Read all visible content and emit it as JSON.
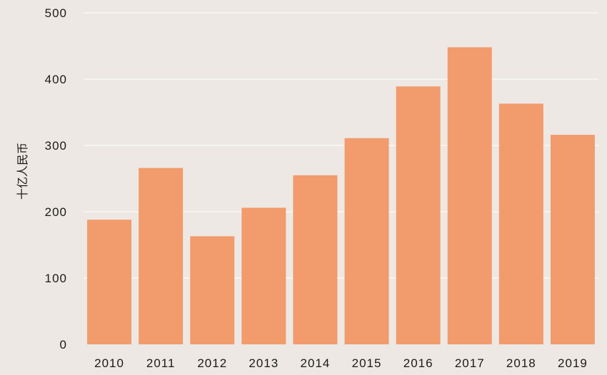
{
  "chart_data": {
    "type": "bar",
    "title": "",
    "xlabel": "",
    "ylabel": "十亿人民币",
    "categories": [
      "2010",
      "2011",
      "2012",
      "2013",
      "2014",
      "2015",
      "2016",
      "2017",
      "2018",
      "2019"
    ],
    "values": [
      188,
      266,
      163,
      206,
      255,
      311,
      389,
      448,
      363,
      316
    ],
    "ylim": [
      0,
      500
    ],
    "yticks": [
      0,
      100,
      200,
      300,
      400,
      500
    ],
    "grid": true,
    "bar_color": "#f29b6c",
    "background_color": "#ede8e3",
    "grid_color": "#ffffff"
  }
}
